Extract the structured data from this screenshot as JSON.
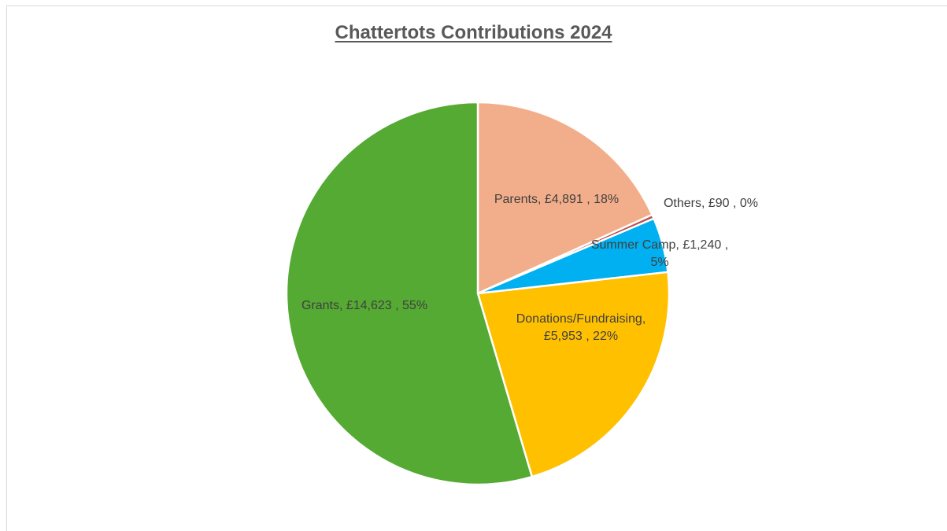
{
  "chart_data": {
    "type": "pie",
    "title": "Chattertots Contributions 2024",
    "start_angle_deg": 0,
    "direction": "clockwise",
    "slices": [
      {
        "name": "Parents",
        "value": 4891,
        "value_label": "£4,891",
        "percent_label": "18%",
        "color": "#f2ae8a"
      },
      {
        "name": "Others",
        "value": 90,
        "value_label": "£90",
        "percent_label": "0%",
        "color": "#c0504d"
      },
      {
        "name": "Summer Camp",
        "value": 1240,
        "value_label": "£1,240",
        "percent_label": "5%",
        "color": "#00b0f0"
      },
      {
        "name": "Donations/Fundraising",
        "value": 5953,
        "value_label": "£5,953",
        "percent_label": "22%",
        "color": "#ffc000"
      },
      {
        "name": "Grants",
        "value": 14623,
        "value_label": "£14,623",
        "percent_label": "55%",
        "color": "#55aa33"
      }
    ],
    "labels": [
      {
        "lines": [
          "Parents,  £4,891 , 18%"
        ]
      },
      {
        "lines": [
          "Others,  £90 , 0%"
        ]
      },
      {
        "lines": [
          "Summer Camp,  £1,240 ,",
          "5%"
        ]
      },
      {
        "lines": [
          "Donations/Fundraising,",
          "£5,953 , 22%"
        ]
      },
      {
        "lines": [
          "Grants,  £14,623 , 55%"
        ]
      }
    ],
    "legend": "none"
  }
}
